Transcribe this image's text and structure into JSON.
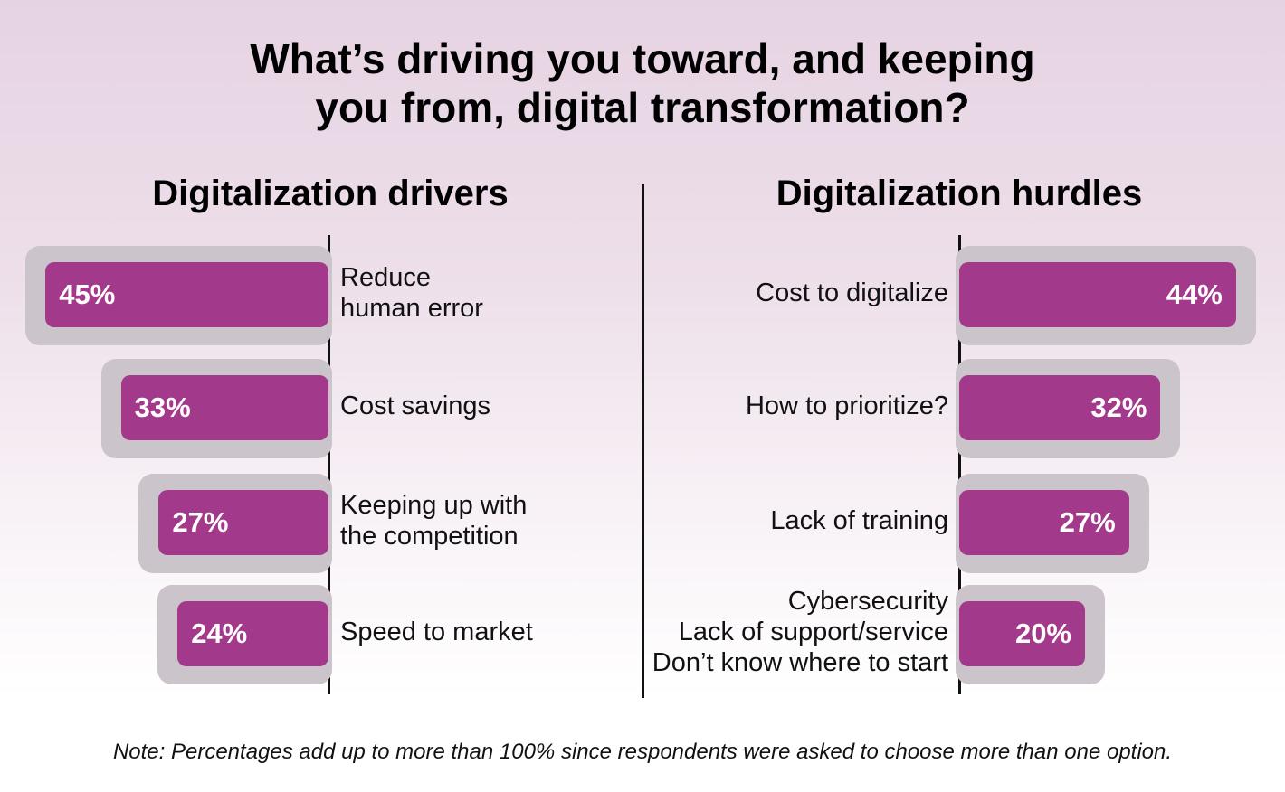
{
  "title": "What’s driving you toward, and keeping\nyou from, digital transformation?",
  "note": "Note: Percentages add up to more than 100% since respondents were asked to choose more than one option.",
  "chart_data": [
    {
      "type": "bar",
      "title": "Digitalization drivers",
      "bar_direction": "left",
      "color": "#a3398b",
      "categories": [
        "Reduce\nhuman error",
        "Cost savings",
        "Keeping up with\nthe competition",
        "Speed to market"
      ],
      "values": [
        45,
        33,
        27,
        24
      ],
      "value_labels": [
        "45%",
        "33%",
        "27%",
        "24%"
      ]
    },
    {
      "type": "bar",
      "title": "Digitalization hurdles",
      "bar_direction": "right",
      "color": "#a3398b",
      "categories": [
        "Cost to digitalize",
        "How to prioritize?",
        "Lack of training",
        "Cybersecurity\nLack of support/service\nDon’t know where to start"
      ],
      "values": [
        44,
        32,
        27,
        20
      ],
      "value_labels": [
        "44%",
        "32%",
        "27%",
        "20%"
      ]
    }
  ]
}
